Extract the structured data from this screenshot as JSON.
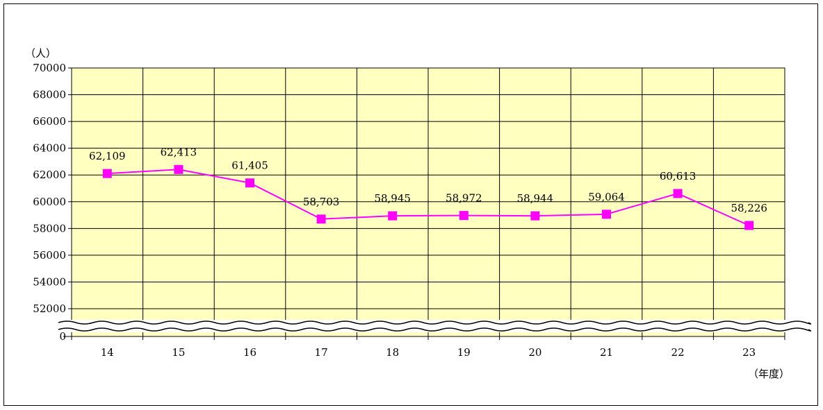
{
  "chart_data": {
    "type": "line",
    "y_unit_label": "（人）",
    "x_unit_label": "（年度）",
    "categories": [
      "14",
      "15",
      "16",
      "17",
      "18",
      "19",
      "20",
      "21",
      "22",
      "23"
    ],
    "series": [
      {
        "values": [
          62109,
          62413,
          61405,
          58703,
          58945,
          58972,
          58944,
          59064,
          60613,
          58226
        ],
        "labels": [
          "62,109",
          "62,413",
          "61,405",
          "58,703",
          "58,945",
          "58,972",
          "58,944",
          "59,064",
          "60,613",
          "58,226"
        ],
        "color": "#FF00FF"
      }
    ],
    "y_ticks": [
      "70000",
      "68000",
      "66000",
      "64000",
      "62000",
      "60000",
      "58000",
      "56000",
      "54000",
      "52000",
      "0"
    ],
    "ylim": [
      52000,
      70000
    ],
    "axis_break": true,
    "grid": true,
    "plot_background": "#FFFFC0"
  }
}
